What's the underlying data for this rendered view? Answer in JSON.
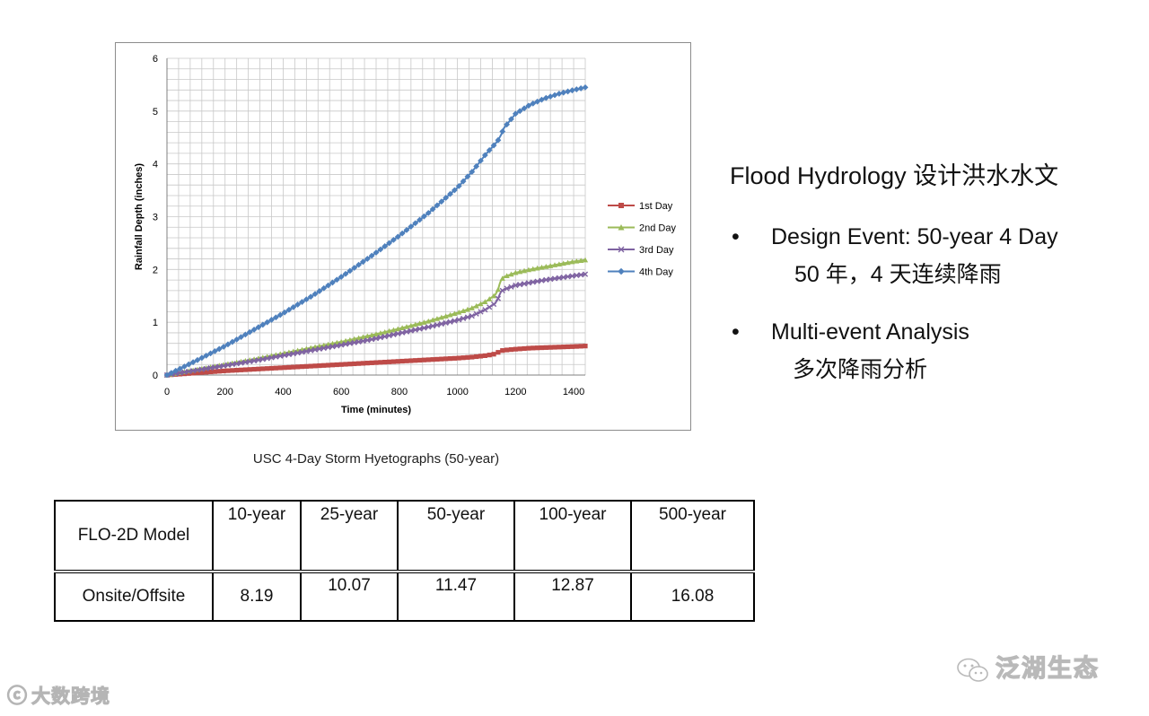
{
  "chart_data": {
    "type": "line",
    "xlabel": "Time (minutes)",
    "ylabel": "Rainfall Depth (inches)",
    "xlim": [
      0,
      1440
    ],
    "ylim": [
      0,
      6
    ],
    "x_ticks": [
      "0",
      "200",
      "400",
      "600",
      "800",
      "1000",
      "1200",
      "1400"
    ],
    "y_ticks": [
      "0",
      "1",
      "2",
      "3",
      "4",
      "5",
      "6"
    ],
    "grid": true,
    "legend_position": "right",
    "x": [
      0,
      100,
      200,
      300,
      400,
      500,
      600,
      700,
      800,
      900,
      1000,
      1050,
      1100,
      1130,
      1140,
      1145,
      1150,
      1160,
      1200,
      1250,
      1300,
      1350,
      1400,
      1440
    ],
    "series": [
      {
        "name": "1st Day",
        "color": "#be4b48",
        "marker": "square",
        "values": [
          0,
          0.04,
          0.08,
          0.11,
          0.14,
          0.17,
          0.2,
          0.23,
          0.26,
          0.29,
          0.32,
          0.34,
          0.37,
          0.4,
          0.43,
          0.45,
          0.46,
          0.47,
          0.49,
          0.51,
          0.52,
          0.53,
          0.54,
          0.55
        ]
      },
      {
        "name": "2nd Day",
        "color": "#9bbb59",
        "marker": "triangle",
        "values": [
          0,
          0.1,
          0.2,
          0.3,
          0.41,
          0.52,
          0.63,
          0.75,
          0.88,
          1.02,
          1.18,
          1.27,
          1.4,
          1.52,
          1.62,
          1.72,
          1.8,
          1.86,
          1.94,
          2.0,
          2.05,
          2.1,
          2.15,
          2.18
        ]
      },
      {
        "name": "3rd Day",
        "color": "#7e62a1",
        "marker": "x",
        "values": [
          0,
          0.09,
          0.18,
          0.27,
          0.37,
          0.47,
          0.57,
          0.67,
          0.79,
          0.91,
          1.04,
          1.12,
          1.25,
          1.36,
          1.45,
          1.52,
          1.58,
          1.62,
          1.7,
          1.75,
          1.8,
          1.84,
          1.88,
          1.91
        ]
      },
      {
        "name": "4th Day",
        "color": "#4f81bd",
        "marker": "diamond",
        "values": [
          0,
          0.27,
          0.55,
          0.86,
          1.17,
          1.5,
          1.86,
          2.24,
          2.64,
          3.07,
          3.55,
          3.85,
          4.2,
          4.38,
          4.45,
          4.5,
          4.55,
          4.68,
          4.95,
          5.12,
          5.24,
          5.33,
          5.4,
          5.45
        ]
      }
    ]
  },
  "caption": "USC 4-Day Storm Hyetographs (50-year)",
  "notes": {
    "title": "Flood Hydrology 设计洪水水文",
    "bullets": [
      {
        "bullet": "•",
        "main": "Design Event: 50-year 4 Day",
        "sub": "50 年，4 天连续降雨"
      },
      {
        "bullet": "•",
        "main": "Multi-event Analysis",
        "sub": "多次降雨分析"
      }
    ]
  },
  "table": {
    "header": [
      "FLO-2D Model",
      "10-year",
      "25-year",
      "50-year",
      "100-year",
      "500-year"
    ],
    "row": [
      "Onsite/Offsite",
      "8.19",
      "10.07",
      "11.47",
      "12.87",
      "16.08"
    ]
  },
  "watermarks": {
    "left": "大数跨境",
    "left_glyph": "ⓒ",
    "right": "泛湖生态"
  }
}
